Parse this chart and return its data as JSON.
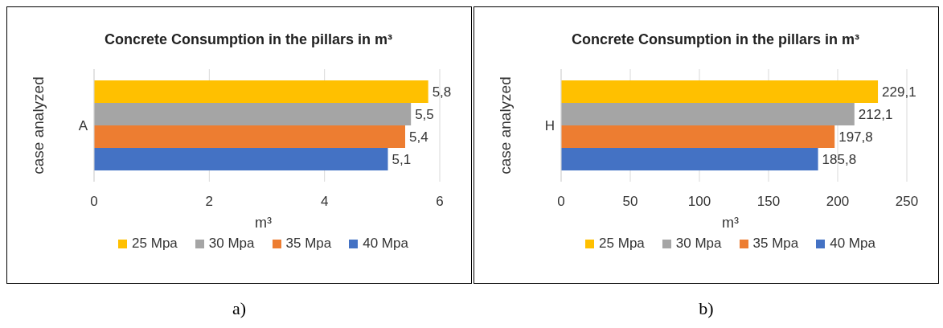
{
  "chart_data": [
    {
      "type": "bar",
      "orientation": "horizontal",
      "title": "Concrete Consumption in the pillars in m³",
      "xlabel": "m³",
      "ylabel": "case analyzed",
      "categories": [
        "A"
      ],
      "xlim": [
        0,
        6
      ],
      "xticks": [
        0,
        2,
        4,
        6
      ],
      "grid": "x",
      "legend": "bottom",
      "annotations": [
        "a)"
      ],
      "series": [
        {
          "name": "25 Mpa",
          "color": "#ffc000",
          "values": [
            5.8
          ],
          "value_labels": [
            "5,8"
          ]
        },
        {
          "name": "30 Mpa",
          "color": "#a5a5a5",
          "values": [
            5.5
          ],
          "value_labels": [
            "5,5"
          ]
        },
        {
          "name": "35 Mpa",
          "color": "#ed7d31",
          "values": [
            5.4
          ],
          "value_labels": [
            "5,4"
          ]
        },
        {
          "name": "40 Mpa",
          "color": "#4472c4",
          "values": [
            5.1
          ],
          "value_labels": [
            "5,1"
          ]
        }
      ]
    },
    {
      "type": "bar",
      "orientation": "horizontal",
      "title": "Concrete Consumption in the pillars in m³",
      "xlabel": "m³",
      "ylabel": "case analyzed",
      "categories": [
        "H"
      ],
      "xlim": [
        0,
        250
      ],
      "xticks": [
        0,
        50,
        100,
        150,
        200,
        250
      ],
      "grid": "x",
      "legend": "bottom",
      "annotations": [
        "b)"
      ],
      "series": [
        {
          "name": "25 Mpa",
          "color": "#ffc000",
          "values": [
            229.1
          ],
          "value_labels": [
            "229,1"
          ]
        },
        {
          "name": "30 Mpa",
          "color": "#a5a5a5",
          "values": [
            212.1
          ],
          "value_labels": [
            "212,1"
          ]
        },
        {
          "name": "35 Mpa",
          "color": "#ed7d31",
          "values": [
            197.8
          ],
          "value_labels": [
            "197,8"
          ]
        },
        {
          "name": "40 Mpa",
          "color": "#4472c4",
          "values": [
            185.8
          ],
          "value_labels": [
            "185,8"
          ]
        }
      ]
    }
  ]
}
